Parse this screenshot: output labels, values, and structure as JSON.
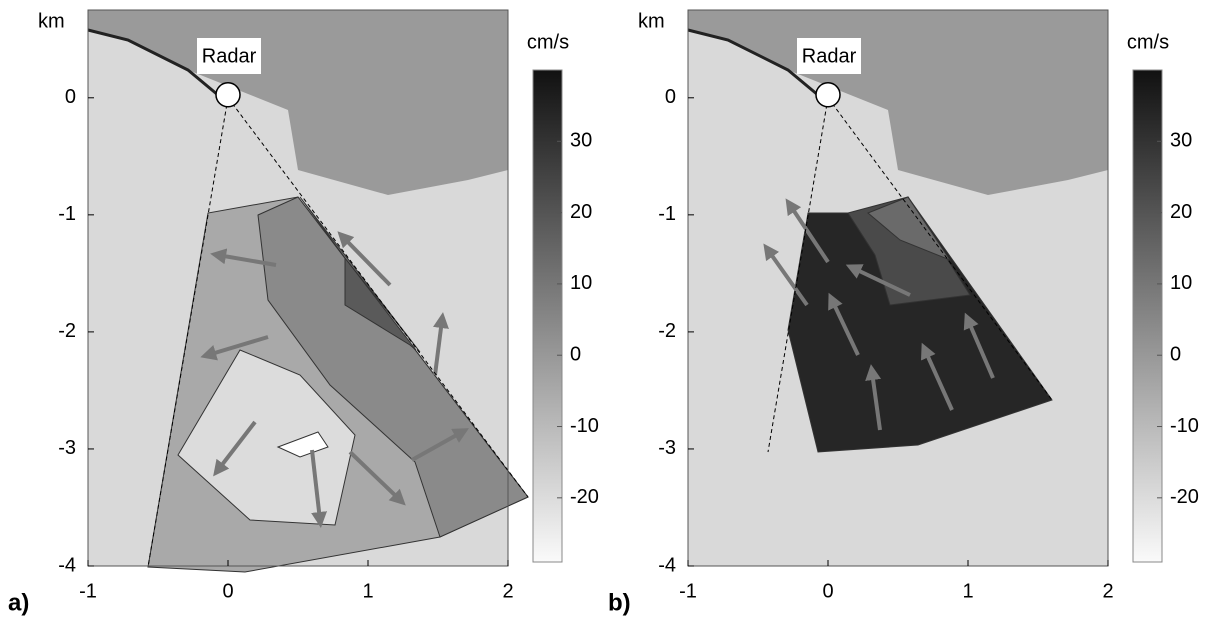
{
  "chart_data": [
    {
      "type": "map",
      "panel_label": "a)",
      "y_unit_label": "km",
      "marker_label": "Radar",
      "colorbar_label": "cm/s",
      "xlim": [
        -1,
        2
      ],
      "xticks": [
        -1,
        0,
        1,
        2
      ],
      "ylim": [
        -4,
        0.75
      ],
      "yticks": [
        -4,
        -3,
        -2,
        -1,
        0
      ],
      "clim": [
        -29,
        40
      ],
      "cticks": [
        -20,
        -10,
        0,
        10,
        20,
        30
      ]
    },
    {
      "type": "map",
      "panel_label": "b)",
      "y_unit_label": "km",
      "marker_label": "Radar",
      "colorbar_label": "cm/s",
      "xlim": [
        -1,
        2
      ],
      "xticks": [
        -1,
        0,
        1,
        2
      ],
      "ylim": [
        -4,
        0.75
      ],
      "yticks": [
        -4,
        -3,
        -2,
        -1,
        0
      ],
      "clim": [
        -29,
        40
      ],
      "cticks": [
        -20,
        -10,
        0,
        10,
        20,
        30
      ]
    }
  ]
}
